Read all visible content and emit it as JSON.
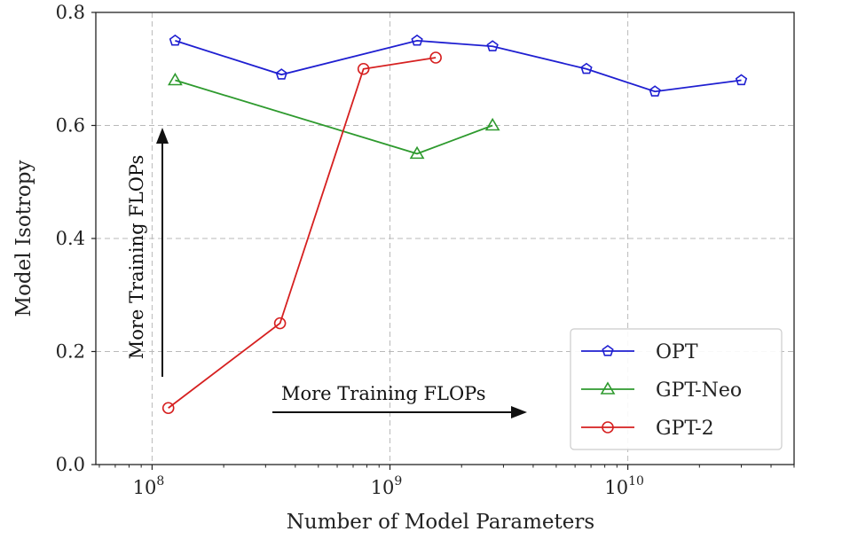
{
  "chart_data": {
    "type": "line",
    "xlabel": "Number of Model Parameters",
    "ylabel": "Model Isotropy",
    "xscale": "log",
    "xlim": [
      58000000,
      50000000000
    ],
    "ylim": [
      0,
      0.8
    ],
    "x_ticks": [
      {
        "value": 100000000,
        "base": "10",
        "exp": "8"
      },
      {
        "value": 1000000000,
        "base": "10",
        "exp": "9"
      },
      {
        "value": 10000000000,
        "base": "10",
        "exp": "10"
      }
    ],
    "y_ticks": [
      "0.0",
      "0.2",
      "0.4",
      "0.6",
      "0.8"
    ],
    "grid": true,
    "legend_position": "lower-right",
    "series": [
      {
        "name": "OPT",
        "color": "#1f1fd1",
        "marker": "pentagon",
        "points": [
          {
            "x": 125000000,
            "y": 0.75
          },
          {
            "x": 350000000,
            "y": 0.69
          },
          {
            "x": 1300000000,
            "y": 0.75
          },
          {
            "x": 2700000000,
            "y": 0.74
          },
          {
            "x": 6700000000,
            "y": 0.7
          },
          {
            "x": 13000000000,
            "y": 0.66
          },
          {
            "x": 30000000000,
            "y": 0.68
          }
        ]
      },
      {
        "name": "GPT-Neo",
        "color": "#2e9a2e",
        "marker": "triangle",
        "points": [
          {
            "x": 125000000,
            "y": 0.68
          },
          {
            "x": 1300000000,
            "y": 0.55
          },
          {
            "x": 2700000000,
            "y": 0.6
          }
        ]
      },
      {
        "name": "GPT-2",
        "color": "#d62020",
        "marker": "circle",
        "points": [
          {
            "x": 117000000,
            "y": 0.1
          },
          {
            "x": 345000000,
            "y": 0.25
          },
          {
            "x": 774000000,
            "y": 0.7
          },
          {
            "x": 1558000000,
            "y": 0.72
          }
        ]
      }
    ],
    "annotations": [
      {
        "text": "More Training FLOPs",
        "direction": "up"
      },
      {
        "text": "More Training FLOPs",
        "direction": "right"
      }
    ]
  }
}
